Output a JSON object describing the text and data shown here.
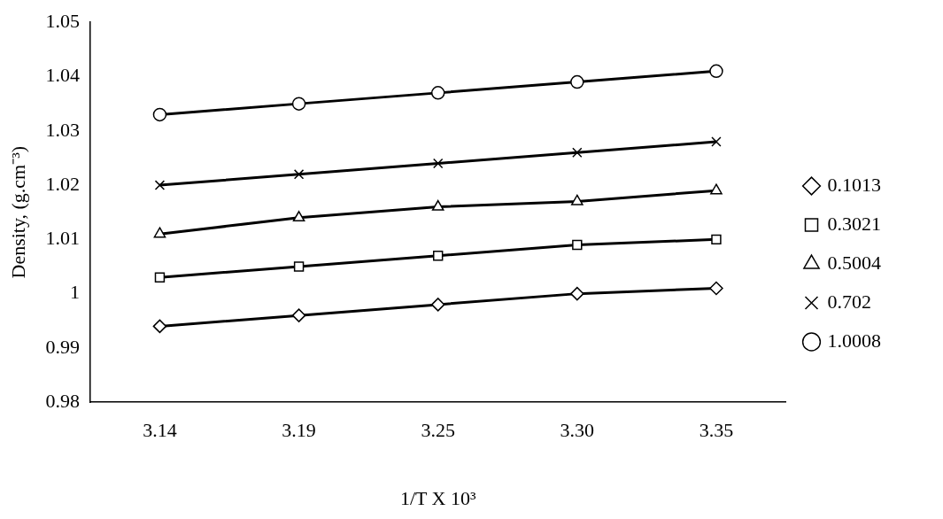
{
  "chart_data": {
    "type": "line",
    "xlabel": "1/T X 10³",
    "ylabel": "Density, (g.cm⁻³)",
    "categories": [
      "3.14",
      "3.19",
      "3.25",
      "3.30",
      "3.35"
    ],
    "series": [
      {
        "name": "0.1013",
        "color": "#000000",
        "marker": "diamond",
        "values": [
          0.994,
          0.996,
          0.998,
          1.0,
          1.001
        ]
      },
      {
        "name": "0.3021",
        "color": "#000000",
        "marker": "square",
        "values": [
          1.003,
          1.005,
          1.007,
          1.009,
          1.01
        ]
      },
      {
        "name": "0.5004",
        "color": "#000000",
        "marker": "triangle",
        "values": [
          1.011,
          1.014,
          1.016,
          1.017,
          1.019
        ]
      },
      {
        "name": "0.702",
        "color": "#000000",
        "marker": "cross",
        "values": [
          1.02,
          1.022,
          1.024,
          1.026,
          1.028
        ]
      },
      {
        "name": "1.0008",
        "color": "#000000",
        "marker": "circle",
        "values": [
          1.033,
          1.035,
          1.037,
          1.039,
          1.041
        ]
      }
    ],
    "ylim": [
      0.98,
      1.05
    ],
    "yticks": [
      0.98,
      0.99,
      1,
      1.01,
      1.02,
      1.03,
      1.04,
      1.05
    ],
    "grid": false,
    "legend": "right",
    "line_style": "solid"
  }
}
